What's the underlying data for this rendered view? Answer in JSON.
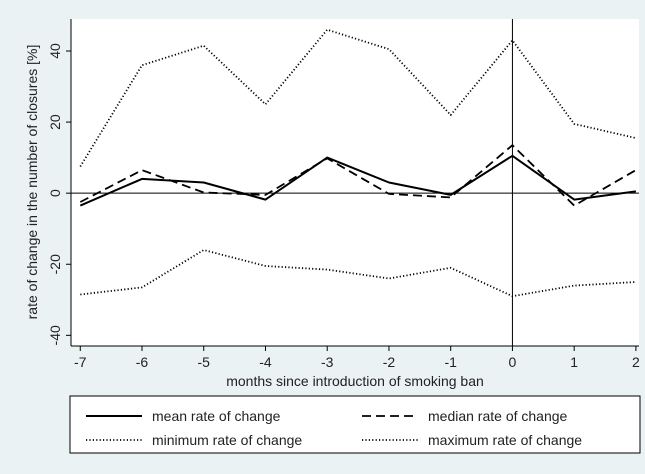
{
  "chart_data": {
    "type": "line",
    "title": "",
    "xlabel": "months since introduction of smoking ban",
    "ylabel": "rate of change in the number of closures [%]",
    "x": [
      -7,
      -6,
      -5,
      -4,
      -3,
      -2,
      -1,
      0,
      1,
      2
    ],
    "xticks": [
      "-7",
      "-6",
      "-5",
      "-4",
      "-3",
      "-2",
      "-1",
      "0",
      "1",
      "2"
    ],
    "yticks": [
      "-40",
      "-20",
      "0",
      "20",
      "40"
    ],
    "xlim": [
      -7.15,
      2.05
    ],
    "ylim": [
      -43,
      49
    ],
    "grid": false,
    "reference_lines": {
      "y": 0,
      "x": 0
    },
    "legend_position": "bottom",
    "series": [
      {
        "name": "mean rate of change",
        "style": "solid",
        "values": [
          -3.5,
          4,
          3,
          -1.8,
          10,
          3,
          -0.5,
          10.5,
          -1.8,
          0.5
        ]
      },
      {
        "name": "median rate of change",
        "style": "dashed",
        "values": [
          -2.5,
          6.5,
          0.2,
          -0.5,
          9.8,
          -0.2,
          -1.2,
          13.5,
          -3.5,
          6.5
        ]
      },
      {
        "name": "minimum rate of change",
        "style": "dotted",
        "values": [
          -28.5,
          -26.5,
          -16,
          -20.5,
          -21.5,
          -24,
          -21,
          -29,
          -26,
          -25
        ]
      },
      {
        "name": "maximum rate of change",
        "style": "dotted",
        "values": [
          7.5,
          36,
          41.5,
          25,
          46,
          40.5,
          22,
          43,
          19.5,
          15.5
        ]
      }
    ],
    "colors": {
      "background": "#eaf2f3",
      "plot": "#ffffff",
      "line": "#000000"
    }
  }
}
